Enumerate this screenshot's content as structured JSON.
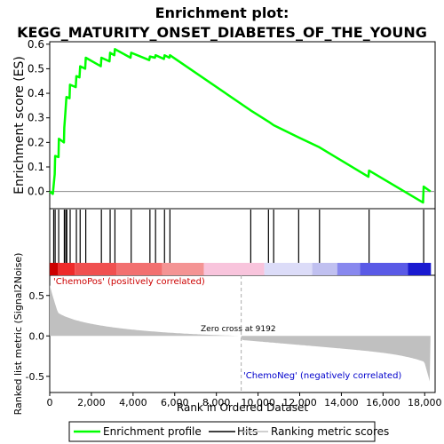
{
  "title_line1": "Enrichment plot:",
  "title_line2": "KEGG_MATURITY_ONSET_DIABETES_OF_THE_YOUNG",
  "chart_data": {
    "type": "line",
    "x_range": [
      0,
      18500
    ],
    "xlabel": "Rank in Ordered Dataset",
    "x_ticks": [
      0,
      2000,
      4000,
      6000,
      8000,
      10000,
      12000,
      14000,
      16000,
      18000
    ],
    "es_panel": {
      "ylabel": "Enrichment score (ES)",
      "ylim": [
        -0.07,
        0.61
      ],
      "y_ticks": [
        0.0,
        0.1,
        0.2,
        0.3,
        0.4,
        0.5,
        0.6
      ],
      "series": [
        {
          "name": "Enrichment profile",
          "color": "#00ff00",
          "points": [
            [
              0,
              0.0
            ],
            [
              150,
              -0.01
            ],
            [
              240,
              0.07
            ],
            [
              260,
              0.145
            ],
            [
              420,
              0.14
            ],
            [
              440,
              0.215
            ],
            [
              680,
              0.2
            ],
            [
              700,
              0.26
            ],
            [
              760,
              0.33
            ],
            [
              800,
              0.385
            ],
            [
              950,
              0.38
            ],
            [
              970,
              0.435
            ],
            [
              1250,
              0.425
            ],
            [
              1280,
              0.47
            ],
            [
              1430,
              0.465
            ],
            [
              1460,
              0.51
            ],
            [
              1700,
              0.5
            ],
            [
              1730,
              0.545
            ],
            [
              2450,
              0.51
            ],
            [
              2480,
              0.545
            ],
            [
              2870,
              0.53
            ],
            [
              2900,
              0.565
            ],
            [
              3100,
              0.555
            ],
            [
              3130,
              0.58
            ],
            [
              3880,
              0.545
            ],
            [
              3910,
              0.565
            ],
            [
              4780,
              0.535
            ],
            [
              4810,
              0.55
            ],
            [
              5050,
              0.545
            ],
            [
              5080,
              0.555
            ],
            [
              5480,
              0.54
            ],
            [
              5510,
              0.555
            ],
            [
              5740,
              0.545
            ],
            [
              5770,
              0.555
            ],
            [
              9650,
              0.33
            ],
            [
              10500,
              0.285
            ],
            [
              10750,
              0.27
            ],
            [
              11950,
              0.22
            ],
            [
              12950,
              0.18
            ],
            [
              15300,
              0.06
            ],
            [
              15330,
              0.085
            ],
            [
              17920,
              -0.045
            ],
            [
              17950,
              0.02
            ],
            [
              18280,
              0.0
            ]
          ]
        }
      ]
    },
    "hits": [
      190,
      260,
      430,
      700,
      770,
      820,
      980,
      1280,
      1460,
      1730,
      2480,
      2900,
      3130,
      3910,
      4810,
      5080,
      5510,
      5770,
      9650,
      10500,
      10750,
      11950,
      12950,
      15330,
      17950
    ],
    "metric_panel": {
      "ylabel": "Ranked list metric (Signal2Noise)",
      "ylim": [
        -0.7,
        0.75
      ],
      "y_ticks": [
        -0.5,
        0.0,
        0.5
      ],
      "zero_cross": 9192,
      "zero_cross_label": "Zero cross at 9192",
      "pos_label": "'ChemoPos' (positively correlated)",
      "neg_label": "'ChemoNeg' (negatively correlated)",
      "fill_color": "#c0c0c0"
    },
    "legend": [
      {
        "name": "Enrichment profile",
        "color": "#00ff00"
      },
      {
        "name": "Hits",
        "color": "#000000"
      },
      {
        "name": "Ranking metric scores",
        "color": "#c0c0c0"
      }
    ]
  }
}
